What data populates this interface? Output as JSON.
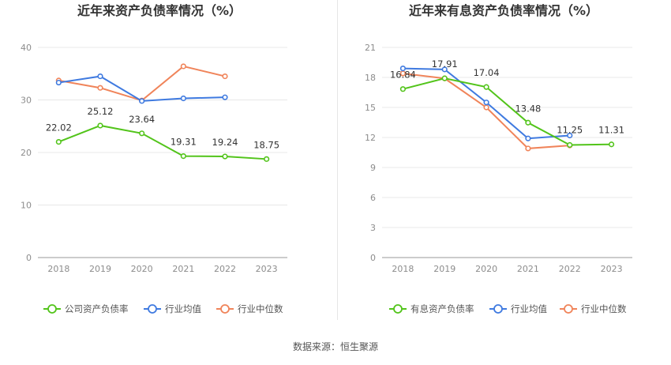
{
  "source_text": "数据来源：恒生聚源",
  "chart_data": [
    {
      "type": "line",
      "title": "近年来资产负债率情况（%）",
      "categories": [
        "2018",
        "2019",
        "2020",
        "2021",
        "2022",
        "2023"
      ],
      "ylim": [
        0,
        40
      ],
      "yticks": [
        0,
        10,
        20,
        30,
        40
      ],
      "grid": true,
      "legend_position": "bottom",
      "series": [
        {
          "name": "公司资产负债率",
          "color": "#52c41a",
          "values": [
            22.02,
            25.12,
            23.64,
            19.31,
            19.24,
            18.75
          ],
          "labels": [
            "22.02",
            "25.12",
            "23.64",
            "19.31",
            "19.24",
            "18.75"
          ],
          "show_labels": true
        },
        {
          "name": "行业均值",
          "color": "#3f7ae0",
          "values": [
            33.3,
            34.5,
            29.8,
            30.3,
            30.5,
            null
          ],
          "show_labels": false
        },
        {
          "name": "行业中位数",
          "color": "#f0845a",
          "values": [
            33.7,
            32.3,
            29.9,
            36.4,
            34.5,
            null
          ],
          "show_labels": false
        }
      ]
    },
    {
      "type": "line",
      "title": "近年来有息资产负债率情况（%）",
      "categories": [
        "2018",
        "2019",
        "2020",
        "2021",
        "2022",
        "2023"
      ],
      "ylim": [
        0,
        21
      ],
      "yticks": [
        0,
        3,
        6,
        9,
        12,
        15,
        18,
        21
      ],
      "grid": true,
      "legend_position": "bottom",
      "series": [
        {
          "name": "有息资产负债率",
          "color": "#52c41a",
          "values": [
            16.84,
            17.91,
            17.04,
            13.48,
            11.25,
            11.31
          ],
          "labels": [
            "16.84",
            "17.91",
            "17.04",
            "13.48",
            "11.25",
            "11.31"
          ],
          "show_labels": true
        },
        {
          "name": "行业均值",
          "color": "#3f7ae0",
          "values": [
            18.9,
            18.8,
            15.5,
            11.9,
            12.2,
            null
          ],
          "show_labels": false
        },
        {
          "name": "行业中位数",
          "color": "#f0845a",
          "values": [
            18.4,
            17.9,
            15.0,
            10.9,
            11.2,
            null
          ],
          "show_labels": false
        }
      ]
    }
  ]
}
